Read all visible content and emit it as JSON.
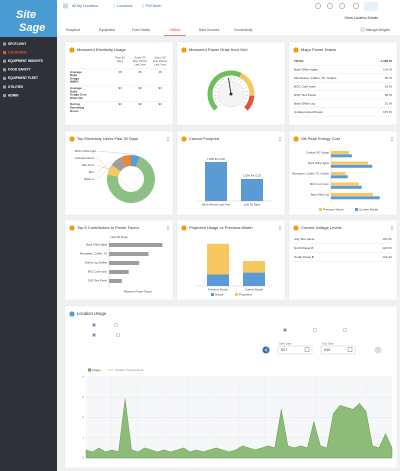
{
  "sidebar": {
    "logo": [
      "Site",
      "Sage"
    ],
    "menu": [
      "SPOTLIGHT",
      "LOCATIONS",
      "EQUIPMENT INSIGHTS",
      "FOOD SAFETY",
      "EQUIPMENT FLEET",
      "UTILITIES",
      "ADMIN"
    ],
    "active": 1
  },
  "header": {
    "breadcrumbs": [
      "All My Locations",
      "Locations",
      "FW North"
    ],
    "location_details": "Show Location Details",
    "tabs": [
      "Snapshot",
      "Equipment",
      "Food Safety",
      "Utilities",
      "Data Sources",
      "Connectivity"
    ],
    "active_tab": 3,
    "manage": "Manage Widgets"
  },
  "widgets": {
    "measured_electricity": {
      "title": "Measured Electricity Usage",
      "columns": [
        [
          "Past 30",
          "Days"
        ],
        [
          "Same 30",
          "Day Period",
          "Last Year"
        ],
        [
          "Same 30",
          "Day Period",
          "Last Year"
        ]
      ],
      "rows": [
        {
          "label": [
            "Average",
            "Daily",
            "Usage",
            "(kWh)"
          ],
          "values": [
            "38",
            "35",
            "38"
          ]
        },
        {
          "label": [
            "Average",
            "Daily",
            "Usage Cost",
            "(Past 30)"
          ],
          "values": [
            "$3",
            "$3",
            "$3"
          ]
        },
        {
          "label": [
            "During",
            "Operating",
            "Hours"
          ],
          "values": [
            "$0",
            "$0",
            "$0"
          ]
        }
      ]
    },
    "power_draw": {
      "title": "Measured Power Draw from Grid",
      "type": "gauge",
      "value": 1.4,
      "min": 0,
      "max": 3
    },
    "major_draws": {
      "title": "Major Power Draws",
      "rows": [
        [
          "TOTAL",
          "1,388 W"
        ],
        [
          "Back Office lights",
          "103 W"
        ],
        [
          "Microwave, Coffee, TV, Outlets",
          "98 W"
        ],
        [
          "BOC Conf room",
          "91 W"
        ],
        [
          "DVD Tent Panel",
          "66 W"
        ],
        [
          "Back Office Ltg",
          "51 W"
        ],
        [
          "Undetermined Power",
          "979 W"
        ]
      ]
    },
    "top_users": {
      "title": "Top Electricity Users Past 30 Days",
      "type": "donut",
      "labels": [
        "BOC office light",
        "Undetermined...",
        "Mar Prof...",
        "Mic...",
        "Back o..."
      ],
      "values": [
        6,
        72,
        7,
        8,
        7
      ],
      "colors": [
        "#5b9bd5",
        "#8cc084",
        "#f6c85f",
        "#9e9e9e",
        "#e8873a"
      ]
    },
    "carbon": {
      "title": "Carbon Footprint",
      "type": "bar",
      "categories": [
        "Same Period Last Year",
        "Last 30 Days"
      ],
      "values": [
        1856,
        1050
      ],
      "value_labels": [
        "1,856 lbs CO2",
        "1,050 lbs CO2"
      ],
      "ylim": [
        0,
        2000
      ],
      "color": "#5b9bd5"
    },
    "off_peak": {
      "title": "Off-Peak Energy Cost",
      "type": "hbar",
      "categories": [
        "Outdoor PC Usage",
        "Back Office lights",
        "Microwave, Coffee, TV, Outlets",
        "BOC Conf room",
        "Back Office Ltg"
      ],
      "series": [
        {
          "name": "Previous Month",
          "color": "#f6c85f",
          "values": [
            3.1,
            6.4,
            2.5,
            4.8,
            7.2
          ]
        },
        {
          "name": "Current Month",
          "color": "#5b9bd5",
          "values": [
            3.6,
            7.1,
            2.9,
            5.3,
            8.4
          ]
        }
      ],
      "xlim": [
        0,
        10
      ]
    },
    "power_factor": {
      "title": "Top 5 Contributors to Power Factor",
      "subtitle": "Last 30 Days",
      "type": "hbar",
      "categories": [
        "Back Office lights",
        "Microwave, Coffee, TV",
        "Interior Ltg Outlets",
        "BOC Conf room",
        "DVD Tent Panel"
      ],
      "values": [
        0.92,
        0.68,
        0.52,
        0.34,
        0.22
      ],
      "xlim": [
        0,
        1
      ],
      "color": "#9e9e9e",
      "axis_label": "Reactive Power Factor"
    },
    "projected": {
      "title": "Projected Usage vs Previous Month",
      "type": "stacked-bar",
      "categories": [
        "Previous Month",
        "Current Month"
      ],
      "series": [
        {
          "name": "Actual",
          "color": "#5b9bd5",
          "values": [
            300,
            350
          ]
        },
        {
          "name": "Projected",
          "color": "#f6c85f",
          "values": [
            800,
            300
          ]
        }
      ],
      "ylim": [
        0,
        1200
      ]
    },
    "voltage": {
      "title": "Current Voltage Levels",
      "rows": [
        [
          "Avg Tent panel",
          "123.6V"
        ],
        [
          "North Panel B",
          "123.5V"
        ],
        [
          "South Panel B",
          "123.4V"
        ]
      ]
    }
  },
  "location_usage": {
    "title": "Location Usage",
    "units": [
      "kWh",
      "Cost"
    ],
    "unit_selected": 0,
    "sources": [
      "Electricity",
      "Water"
    ],
    "source_selected": 0,
    "ranges": [
      "Past Day",
      "Past Week",
      "Custom"
    ],
    "range_selected": 0,
    "start_label": "Start Date",
    "start": "9/17",
    "end_label": "End Date",
    "end": "9/18",
    "chart": {
      "type": "area",
      "legend": [
        "Usage",
        "Outdoor Temperature"
      ],
      "color": "#6aa84f",
      "values": [
        0.4,
        0.3,
        0.5,
        0.3,
        0.4,
        0.3,
        2.9,
        0.4,
        0.3,
        0.5,
        0.4,
        0.3,
        0.4,
        0.3,
        0.4,
        0.5,
        0.3,
        0.4,
        0.3,
        0.4,
        0.5,
        0.4,
        0.3,
        0.4,
        0.6,
        0.5,
        0.4,
        0.5,
        0.6,
        0.5,
        2.4,
        0.6,
        0.5,
        0.6,
        0.5,
        1.8,
        0.6,
        0.5,
        2.2,
        2.6,
        2.5,
        2.4,
        2.7,
        2.3,
        0.6,
        0.5,
        1.2,
        0.5
      ],
      "ylim": [
        0,
        4
      ],
      "yticks": [
        0,
        1,
        2,
        3,
        4
      ],
      "grid": true
    }
  }
}
